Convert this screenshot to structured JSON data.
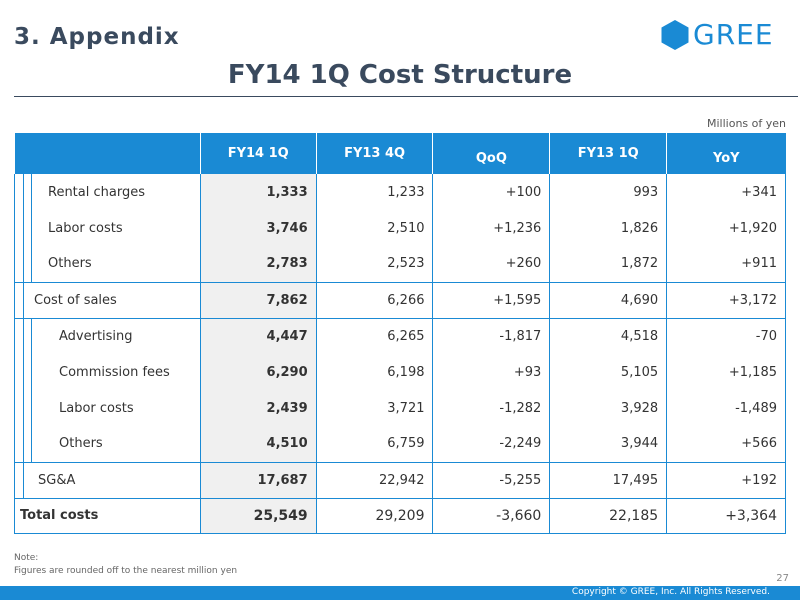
{
  "header": {
    "section": "3. Appendix",
    "logo_text": "GREE",
    "title": "FY14 1Q Cost Structure",
    "units": "Millions of yen"
  },
  "colors": {
    "accent": "#1a8ad4",
    "title": "#3a4a5e",
    "current_col_bg": "#f0f0f0"
  },
  "table": {
    "columns": [
      "FY14 1Q",
      "FY13 4Q",
      "QoQ",
      "FY13 1Q",
      "YoY"
    ],
    "rows": [
      {
        "label": "Rental charges",
        "values": [
          "1,333",
          "1,233",
          "+100",
          "993",
          "+341"
        ]
      },
      {
        "label": "Labor costs",
        "values": [
          "3,746",
          "2,510",
          "+1,236",
          "1,826",
          "+1,920"
        ]
      },
      {
        "label": "Others",
        "values": [
          "2,783",
          "2,523",
          "+260",
          "1,872",
          "+911"
        ]
      },
      {
        "label": "Cost of sales",
        "values": [
          "7,862",
          "6,266",
          "+1,595",
          "4,690",
          "+3,172"
        ]
      },
      {
        "label": "Advertising",
        "values": [
          "4,447",
          "6,265",
          "-1,817",
          "4,518",
          "-70"
        ]
      },
      {
        "label": "Commission fees",
        "values": [
          "6,290",
          "6,198",
          "+93",
          "5,105",
          "+1,185"
        ]
      },
      {
        "label": "Labor costs",
        "values": [
          "2,439",
          "3,721",
          "-1,282",
          "3,928",
          "-1,489"
        ]
      },
      {
        "label": "Others",
        "values": [
          "4,510",
          "6,759",
          "-2,249",
          "3,944",
          "+566"
        ]
      },
      {
        "label": "SG&A",
        "values": [
          "17,687",
          "22,942",
          "-5,255",
          "17,495",
          "+192"
        ]
      },
      {
        "label": "Total costs",
        "values": [
          "25,549",
          "29,209",
          "-3,660",
          "22,185",
          "+3,364"
        ]
      }
    ]
  },
  "note": {
    "heading": "Note:",
    "text": "Figures are rounded off to the nearest million yen"
  },
  "page_number": "27",
  "copyright": "Copyright © GREE, Inc. All Rights Reserved."
}
